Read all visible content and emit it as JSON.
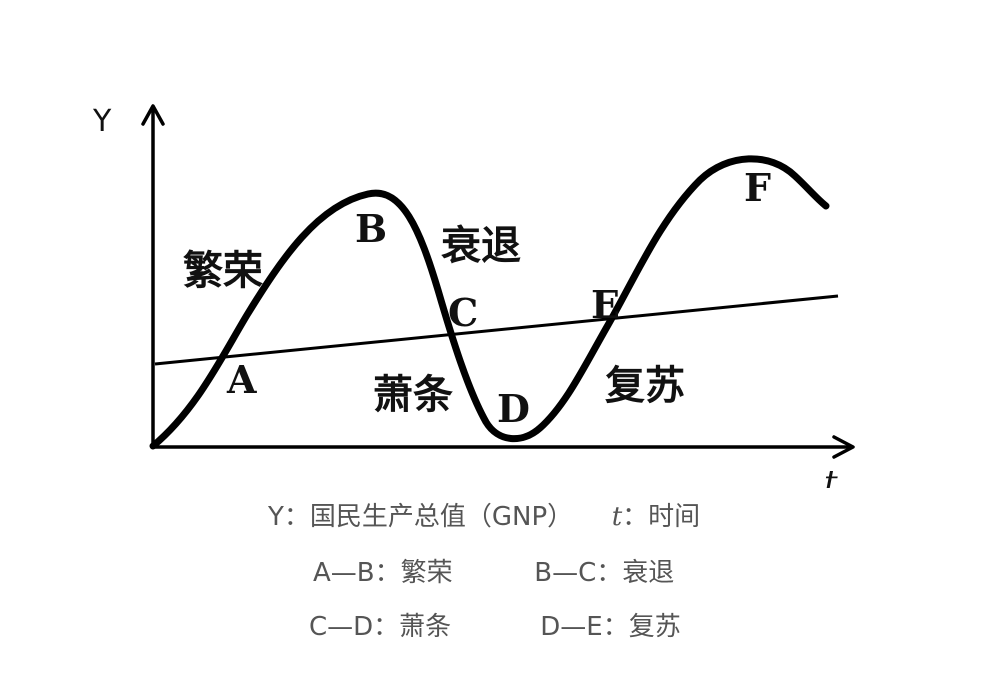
{
  "diagram": {
    "axis_y_label": "Y",
    "axis_x_label": "t",
    "points": {
      "A": "A",
      "B": "B",
      "C": "C",
      "D": "D",
      "E": "E",
      "F": "F"
    },
    "phases": {
      "prosperity": "繁荣",
      "recession": "衰退",
      "depression": "萧条",
      "recovery": "复苏"
    }
  },
  "legend": {
    "y_def": "Y：国民生产总值（GNP）",
    "t_symbol": "t",
    "t_def": "：时间",
    "ab": "A—B：繁荣",
    "bc": "B—C：衰退",
    "cd": "C—D：萧条",
    "de": "D—E：复苏"
  }
}
